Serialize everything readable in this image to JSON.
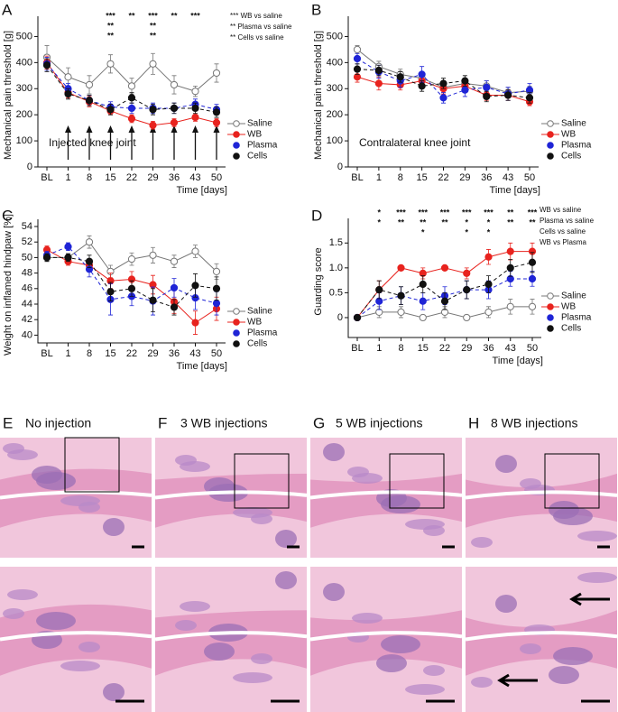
{
  "chart_data": [
    {
      "type": "line",
      "panel": "A",
      "ylabel": "Mechanical pain threshold [g]",
      "xlabel": "Time [days]",
      "subtitle": "Injected knee joint",
      "injection_arrows": true,
      "categories": [
        "BL",
        "1",
        "8",
        "15",
        "22",
        "29",
        "36",
        "43",
        "50"
      ],
      "ylim": [
        0,
        550
      ],
      "yticks": [
        0,
        100,
        200,
        300,
        400,
        500
      ],
      "series": [
        {
          "name": "Saline",
          "color": "#777777",
          "open": true,
          "dash": false,
          "values": [
            420,
            345,
            315,
            395,
            310,
            395,
            315,
            290,
            360
          ],
          "errors": [
            45,
            35,
            35,
            35,
            30,
            40,
            35,
            20,
            35
          ]
        },
        {
          "name": "WB",
          "color": "#e8231e",
          "dash": false,
          "values": [
            400,
            285,
            250,
            215,
            185,
            160,
            170,
            190,
            170
          ],
          "errors": [
            25,
            20,
            20,
            15,
            15,
            15,
            15,
            15,
            15
          ]
        },
        {
          "name": "Plasma",
          "color": "#1f24d6",
          "dash": true,
          "values": [
            395,
            300,
            255,
            230,
            225,
            225,
            225,
            240,
            220
          ],
          "errors": [
            25,
            20,
            20,
            20,
            20,
            20,
            20,
            20,
            20
          ]
        },
        {
          "name": "Cells",
          "color": "#111111",
          "dash": true,
          "values": [
            390,
            280,
            255,
            220,
            265,
            220,
            225,
            225,
            210
          ],
          "errors": [
            25,
            20,
            20,
            20,
            20,
            20,
            20,
            20,
            20
          ]
        }
      ],
      "significance": [
        [],
        [],
        [],
        [
          "***",
          "**",
          "**"
        ],
        [
          "**"
        ],
        [
          "***",
          "**",
          "**"
        ],
        [
          "**"
        ],
        [
          "***"
        ],
        []
      ],
      "significance_key": [
        "*** WB vs saline",
        "** Plasma vs saline",
        "** Cells vs saline"
      ]
    },
    {
      "type": "line",
      "panel": "B",
      "ylabel": "Mechanical pain threshold [g]",
      "xlabel": "Time [days]",
      "subtitle": "Contralateral knee joint",
      "categories": [
        "BL",
        "1",
        "8",
        "15",
        "22",
        "29",
        "36",
        "43",
        "50"
      ],
      "ylim": [
        0,
        550
      ],
      "yticks": [
        0,
        100,
        200,
        300,
        400,
        500
      ],
      "series": [
        {
          "name": "Saline",
          "color": "#777777",
          "open": true,
          "dash": false,
          "values": [
            450,
            385,
            355,
            340,
            305,
            320,
            310,
            285,
            290
          ],
          "errors": [
            15,
            20,
            20,
            20,
            20,
            20,
            20,
            20,
            20
          ]
        },
        {
          "name": "WB",
          "color": "#e8231e",
          "dash": false,
          "values": [
            345,
            320,
            315,
            330,
            300,
            310,
            275,
            275,
            250
          ],
          "errors": [
            20,
            25,
            20,
            25,
            20,
            20,
            20,
            20,
            15
          ]
        },
        {
          "name": "Plasma",
          "color": "#1f24d6",
          "dash": true,
          "values": [
            415,
            365,
            330,
            355,
            265,
            295,
            305,
            280,
            295
          ],
          "errors": [
            20,
            25,
            25,
            30,
            20,
            25,
            25,
            25,
            25
          ]
        },
        {
          "name": "Cells",
          "color": "#111111",
          "dash": true,
          "values": [
            375,
            370,
            345,
            310,
            320,
            330,
            270,
            275,
            265
          ],
          "errors": [
            20,
            20,
            20,
            20,
            20,
            20,
            20,
            20,
            20
          ]
        }
      ]
    },
    {
      "type": "line",
      "panel": "C",
      "ylabel": "Weight on inflamed hindpaw [%]",
      "xlabel": "Time [days]",
      "categories": [
        "BL",
        "1",
        "8",
        "15",
        "22",
        "29",
        "36",
        "43",
        "50"
      ],
      "ylim": [
        39,
        54
      ],
      "yticks": [
        40,
        42,
        44,
        46,
        48,
        50,
        52,
        54
      ],
      "series": [
        {
          "name": "Saline",
          "color": "#777777",
          "open": true,
          "dash": false,
          "values": [
            50,
            50,
            52,
            48.2,
            49.8,
            50.3,
            49.5,
            50.8,
            48.2
          ],
          "errors": [
            0.5,
            0.5,
            0.8,
            0.8,
            0.8,
            1.0,
            0.8,
            0.8,
            1.0
          ]
        },
        {
          "name": "WB",
          "color": "#e8231e",
          "dash": false,
          "values": [
            51,
            49.5,
            49,
            47,
            47.2,
            46.5,
            44.3,
            41.6,
            43.4
          ],
          "errors": [
            0.5,
            0.5,
            0.8,
            1.0,
            1.0,
            1.2,
            1.5,
            1.5,
            1.5
          ]
        },
        {
          "name": "Plasma",
          "color": "#1f24d6",
          "dash": true,
          "values": [
            50.3,
            51.4,
            48.5,
            44.6,
            45,
            44.4,
            46.1,
            44.8,
            44.1
          ],
          "errors": [
            0.5,
            0.5,
            1.0,
            2.0,
            1.2,
            1.8,
            1.2,
            1.5,
            1.5
          ]
        },
        {
          "name": "Cells",
          "color": "#111111",
          "dash": true,
          "values": [
            50,
            50,
            49.5,
            45.6,
            46,
            44.5,
            43.6,
            46.4,
            46
          ],
          "errors": [
            0.5,
            0.5,
            0.8,
            1.2,
            1.0,
            1.5,
            1.0,
            1.5,
            1.5
          ]
        }
      ]
    },
    {
      "type": "line",
      "panel": "D",
      "ylabel": "Guarding score",
      "xlabel": "Time [days]",
      "categories": [
        "BL",
        "1",
        "8",
        "15",
        "22",
        "29",
        "36",
        "43",
        "50"
      ],
      "ylim": [
        -0.4,
        1.85
      ],
      "yticks": [
        0,
        0.5,
        {
          "value": 1,
          "label": "1.0"
        },
        1.5
      ],
      "series": [
        {
          "name": "Saline",
          "color": "#777777",
          "open": true,
          "dash": false,
          "values": [
            0,
            0.11,
            0.11,
            0,
            0.11,
            0,
            0.11,
            0.22,
            0.22
          ],
          "errors": [
            0,
            0.11,
            0.11,
            0,
            0.11,
            0,
            0.11,
            0.15,
            0.15
          ]
        },
        {
          "name": "WB",
          "color": "#e8231e",
          "dash": false,
          "values": [
            0,
            0.56,
            1.0,
            0.89,
            1.0,
            0.89,
            1.22,
            1.33,
            1.33
          ],
          "errors": [
            0,
            0.18,
            0,
            0.11,
            0,
            0.11,
            0.15,
            0.17,
            0.17
          ]
        },
        {
          "name": "Plasma",
          "color": "#1f24d6",
          "dash": true,
          "values": [
            0,
            0.33,
            0.44,
            0.33,
            0.44,
            0.56,
            0.56,
            0.78,
            0.78
          ],
          "errors": [
            0,
            0.17,
            0.18,
            0.17,
            0.18,
            0.18,
            0.18,
            0.15,
            0.15
          ]
        },
        {
          "name": "Cells",
          "color": "#111111",
          "dash": true,
          "values": [
            0,
            0.56,
            0.44,
            0.67,
            0.33,
            0.56,
            0.67,
            1.0,
            1.11
          ],
          "errors": [
            0,
            0.18,
            0.18,
            0.17,
            0.17,
            0.18,
            0.17,
            0.17,
            0.2
          ]
        }
      ],
      "significance": [
        [],
        [
          "*",
          "*"
        ],
        [
          "***",
          "**"
        ],
        [
          "***",
          "**",
          "*"
        ],
        [
          "***",
          "**"
        ],
        [
          "***",
          "*",
          "*"
        ],
        [
          "***",
          "*",
          "*"
        ],
        [
          "**",
          "**"
        ],
        [
          "***",
          "**"
        ]
      ],
      "significance_key": [
        "WB vs saline",
        "Plasma vs saline",
        "Cells vs saline",
        "WB vs Plasma"
      ]
    }
  ],
  "histology": {
    "panels": [
      {
        "label": "E",
        "title": "No injection"
      },
      {
        "label": "F",
        "title": "3 WB injections"
      },
      {
        "label": "G",
        "title": "5 WB injections"
      },
      {
        "label": "H",
        "title": "8 WB injections"
      }
    ]
  }
}
